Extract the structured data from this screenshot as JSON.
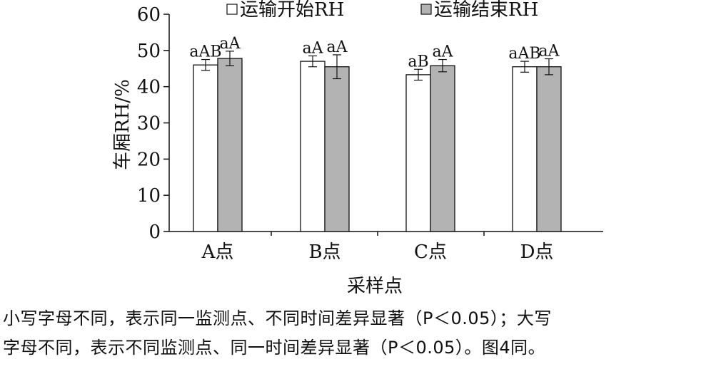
{
  "chart_data": {
    "type": "bar",
    "categories": [
      "A点",
      "B点",
      "C点",
      "D点"
    ],
    "series": [
      {
        "name": "运输开始RH",
        "values": [
          46,
          47,
          43.3,
          45.5
        ],
        "errors": [
          1.5,
          1.5,
          1.5,
          1.5
        ],
        "labels": [
          "aAB",
          "aA",
          "aB",
          "aAB"
        ],
        "color": "#ffffff"
      },
      {
        "name": "运输结束RH",
        "values": [
          47.8,
          45.5,
          45.8,
          45.5
        ],
        "errors": [
          2,
          3.3,
          1.7,
          2.2
        ],
        "labels": [
          "aA",
          "aA",
          "aA",
          "aA"
        ],
        "color": "#b3b3b3"
      }
    ],
    "xlabel": "采样点",
    "ylabel": "车厢RH/%",
    "ylim": [
      0,
      60
    ],
    "yticks": [
      "0",
      "10",
      "20",
      "30",
      "40",
      "50",
      "60"
    ],
    "legend_position": "top",
    "grid": false
  },
  "caption": {
    "line1": "小写字母不同，表示同一监测点、不同时间差异显著（P＜0.05）；大写",
    "line2": "字母不同，表示不同监测点、同一时间差异显著（P＜0.05）。图4同。"
  }
}
